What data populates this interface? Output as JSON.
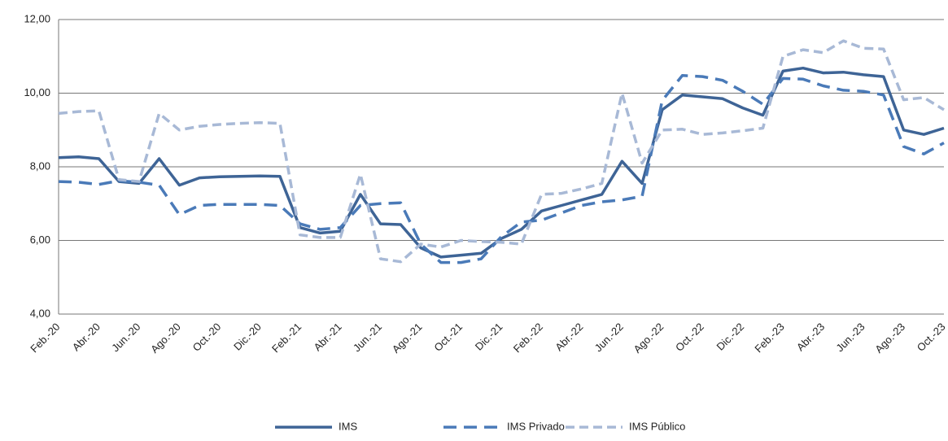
{
  "chart_data": {
    "type": "line",
    "categories": [
      "Feb.-20",
      null,
      "Abr.-20",
      null,
      "Jun.-20",
      null,
      "Ago.-20",
      null,
      "Oct.-20",
      null,
      "Dic.-20",
      null,
      "Feb.-21",
      null,
      "Abr.-21",
      null,
      "Jun.-21",
      null,
      "Ago.-21",
      null,
      "Oct.-21",
      null,
      "Dic.-21",
      null,
      "Feb.-22",
      null,
      "Abr.-22",
      null,
      "Jun.-22",
      null,
      "Ago.-22",
      null,
      "Oct.-22",
      null,
      "Dic.-22",
      null,
      "Feb.-23",
      null,
      "Abr.-23",
      null,
      "Jun.-23",
      null,
      "Ago.-23",
      null,
      "Oct.-23"
    ],
    "series": [
      {
        "name": "IMS",
        "color": "#3e6496",
        "dash": "solid",
        "values": [
          8.25,
          8.27,
          8.22,
          7.6,
          7.55,
          8.22,
          7.5,
          7.7,
          7.73,
          7.74,
          7.75,
          7.74,
          6.35,
          6.2,
          6.25,
          7.25,
          6.45,
          6.43,
          5.8,
          5.55,
          5.6,
          5.65,
          6.05,
          6.3,
          6.8,
          6.95,
          7.1,
          7.25,
          8.15,
          7.55,
          9.55,
          9.95,
          9.9,
          9.85,
          9.6,
          9.4,
          10.6,
          10.68,
          10.55,
          10.57,
          10.5,
          10.45,
          9.0,
          8.88,
          9.05
        ]
      },
      {
        "name": "IMS Privado",
        "color": "#4a7ab8",
        "dash": "long",
        "values": [
          7.6,
          7.58,
          7.52,
          7.62,
          7.58,
          7.5,
          6.7,
          6.95,
          6.98,
          6.98,
          6.98,
          6.95,
          6.45,
          6.3,
          6.35,
          6.95,
          7.0,
          7.02,
          5.9,
          5.4,
          5.4,
          5.5,
          6.1,
          6.5,
          6.55,
          6.75,
          6.95,
          7.05,
          7.1,
          7.2,
          9.8,
          10.48,
          10.45,
          10.35,
          10.05,
          9.7,
          10.4,
          10.38,
          10.2,
          10.08,
          10.05,
          9.95,
          8.55,
          8.35,
          8.65
        ]
      },
      {
        "name": "IMS Público",
        "color": "#a8b9d6",
        "dash": "short",
        "values": [
          9.45,
          9.5,
          9.52,
          7.65,
          7.6,
          9.45,
          9.0,
          9.1,
          9.15,
          9.18,
          9.2,
          9.18,
          6.15,
          6.08,
          6.08,
          7.8,
          5.5,
          5.42,
          5.9,
          5.82,
          6.0,
          5.97,
          5.95,
          5.9,
          7.25,
          7.28,
          7.4,
          7.55,
          10.0,
          8.1,
          9.0,
          9.02,
          8.88,
          8.92,
          8.98,
          9.05,
          11.0,
          11.18,
          11.1,
          11.42,
          11.22,
          11.2,
          9.82,
          9.88,
          9.55
        ]
      }
    ],
    "ylim": [
      4,
      12
    ],
    "yticks": [
      {
        "value": 4,
        "label": "4,00"
      },
      {
        "value": 6,
        "label": "6,00"
      },
      {
        "value": 8,
        "label": "8,00"
      },
      {
        "value": 10,
        "label": "10,00"
      },
      {
        "value": 12,
        "label": "12,00"
      }
    ],
    "grid": true,
    "legend": "bottom"
  }
}
